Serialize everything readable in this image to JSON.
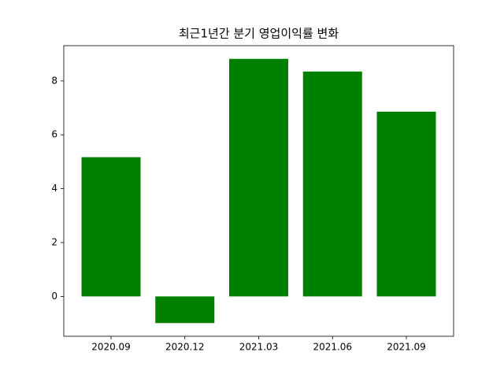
{
  "chart_data": {
    "type": "bar",
    "title": "최근1년간 분기 영업이익률 변화",
    "categories": [
      "2020.09",
      "2020.12",
      "2021.03",
      "2021.06",
      "2021.09"
    ],
    "values": [
      5.17,
      -0.99,
      8.82,
      8.35,
      6.86
    ],
    "color": "#008000",
    "ylim": [
      -1.48,
      9.31
    ],
    "yticks": [
      0,
      2,
      4,
      6,
      8
    ],
    "grid": false
  }
}
